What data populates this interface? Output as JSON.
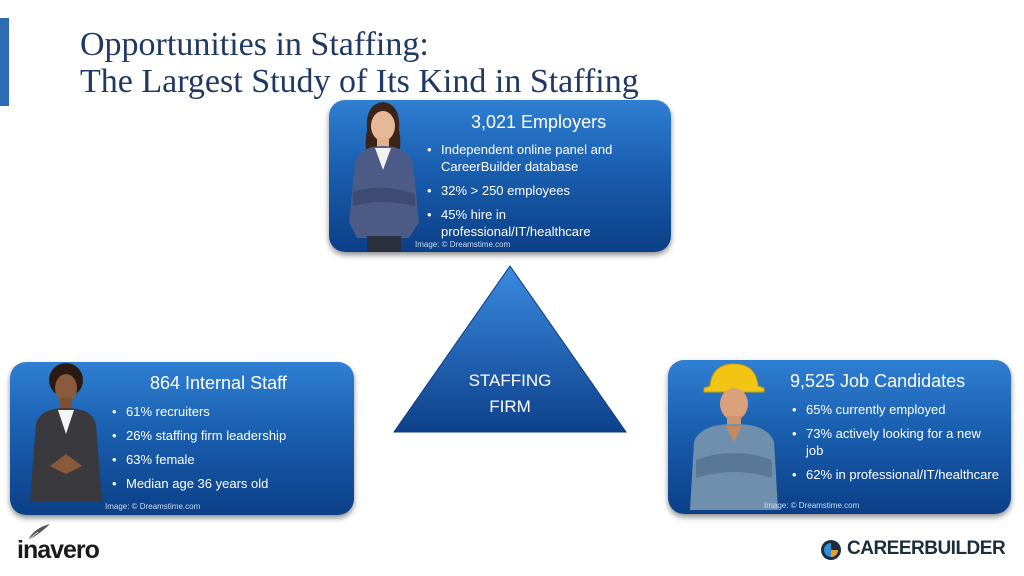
{
  "slide": {
    "title_line1": "Opportunities in Staffing:",
    "title_line2": "The Largest Study of Its Kind in Staffing"
  },
  "employers": {
    "heading": "3,021 Employers",
    "bullets": [
      "Independent online panel and CareerBuilder database",
      "32% > 250 employees",
      "45% hire in professional/IT/healthcare"
    ],
    "credit": "Image: © Dreamstime.com"
  },
  "internal_staff": {
    "heading": "864 Internal Staff",
    "bullets": [
      "61% recruiters",
      "26% staffing firm leadership",
      "63% female",
      "Median age 36 years old"
    ],
    "credit": "Image: © Dreamstime.com"
  },
  "job_candidates": {
    "heading": "9,525 Job Candidates",
    "bullets": [
      "65% currently employed",
      "73% actively looking for a new job",
      "62% in professional/IT/healthcare"
    ],
    "credit": "Image: © Dreamstime.com"
  },
  "center": {
    "line1": "STAFFING",
    "line2": "FIRM"
  },
  "logos": {
    "left": "inavero",
    "right": "CAREERBUILDER"
  },
  "colors": {
    "title": "#1f3864",
    "card_top": "#2f7fd3",
    "card_bottom": "#0c3f87",
    "accent_bar": "#2e6db4"
  },
  "icons": {
    "inavero_mark": "quill-icon",
    "careerbuilder_mark": "cb-circle-icon"
  }
}
